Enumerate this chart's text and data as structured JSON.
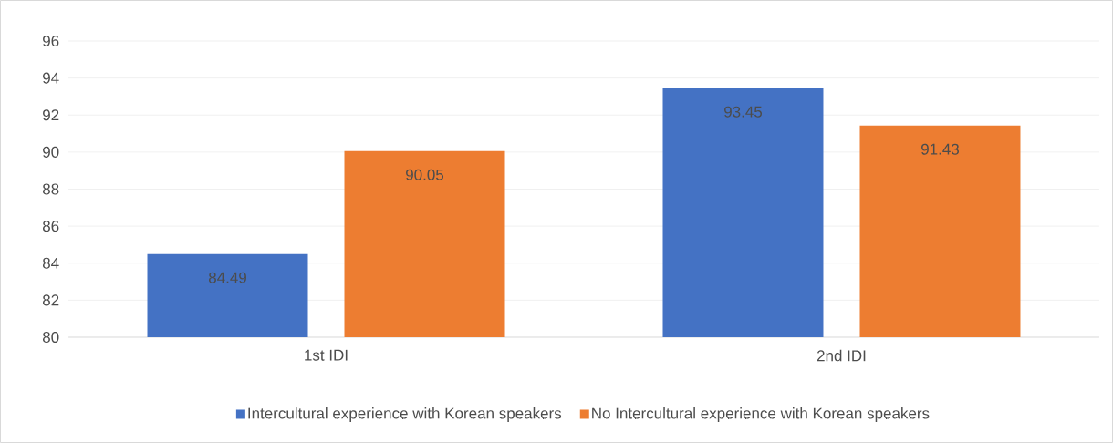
{
  "chart_data": {
    "type": "bar",
    "categories": [
      "1st IDI",
      "2nd IDI"
    ],
    "series": [
      {
        "name": "Intercultural experience with Korean speakers",
        "color": "#4472c4",
        "values": [
          84.49,
          93.45
        ],
        "value_labels": [
          "84.49",
          "93.45"
        ]
      },
      {
        "name": "No Intercultural experience with Korean speakers",
        "color": "#ed7d31",
        "values": [
          90.05,
          91.43
        ],
        "value_labels": [
          "90.05",
          "91.43"
        ]
      }
    ],
    "ylim": [
      80,
      96
    ],
    "yticks": [
      80,
      82,
      84,
      86,
      88,
      90,
      92,
      94,
      96
    ],
    "grid": "y",
    "legend": "bottom"
  }
}
